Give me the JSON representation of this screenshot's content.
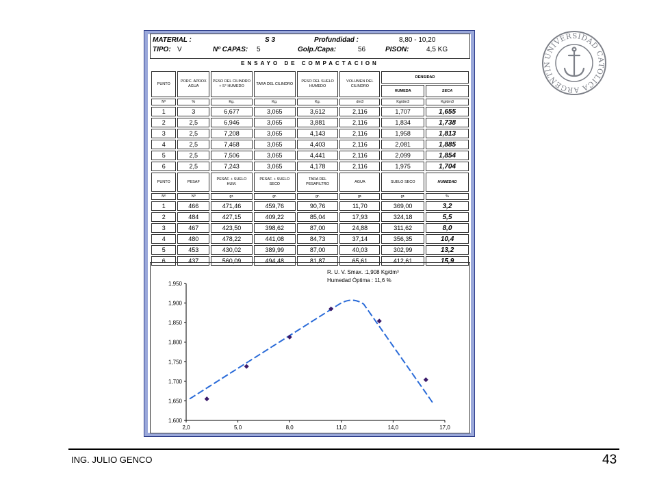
{
  "header": {
    "material_label": "MATERIAL :",
    "material_value": "S 3",
    "profundidad_label": "Profundidad :",
    "profundidad_value": "8,80   -  10,20",
    "tipo_label": "TIPO:",
    "tipo_value": "V",
    "capas_label": "Nº CAPAS:",
    "capas_value": "5",
    "golp_label": "Golp./Capa:",
    "golp_value": "56",
    "pison_label": "PISON:",
    "pison_value": "4,5 KG"
  },
  "title": "ENSAYO  DE  COMPACTACION",
  "table1": {
    "headers": [
      "PUNTO",
      "PORC. APROX AGUA",
      "PESO DEL CILINDRO + S° HUMEDO",
      "TARA DEL CILINDRO",
      "PESO DEL SUELO HUMEDO",
      "VOLUMEN DEL CILINDRO"
    ],
    "densidad": "DENSIDAD",
    "humeda": "HUMEDA",
    "seca": "SECA",
    "units": [
      "Nº",
      "%",
      "Kg.",
      "Kg.",
      "Kg.",
      "dm3",
      "Kg/dm3",
      "Kg/dm3"
    ],
    "rows": [
      [
        "1",
        "3",
        "6,677",
        "3,065",
        "3,612",
        "2,116",
        "1,707",
        "1,655"
      ],
      [
        "2",
        "2,5",
        "6,946",
        "3,065",
        "3,881",
        "2,116",
        "1,834",
        "1,738"
      ],
      [
        "3",
        "2,5",
        "7,208",
        "3,065",
        "4,143",
        "2,116",
        "1,958",
        "1,813"
      ],
      [
        "4",
        "2,5",
        "7,468",
        "3,065",
        "4,403",
        "2,116",
        "2,081",
        "1,885"
      ],
      [
        "5",
        "2,5",
        "7,506",
        "3,065",
        "4,441",
        "2,116",
        "2,099",
        "1,854"
      ],
      [
        "6",
        "2,5",
        "7,243",
        "3,065",
        "4,178",
        "2,116",
        "1,975",
        "1,704"
      ]
    ]
  },
  "table2": {
    "headers": [
      "PUNTO",
      "PESAF",
      "PESAF. + SUELO HUM.",
      "PESAF. + SUELO SECO",
      "TARA DEL PESAFILTRO",
      "AGUA",
      "SUELO SECO",
      "HUMEDAD"
    ],
    "units": [
      "Nº",
      "Nº",
      "gr.",
      "gr.",
      "gr.",
      "gr.",
      "gr.",
      "%"
    ],
    "rows": [
      [
        "1",
        "466",
        "471,46",
        "459,76",
        "90,76",
        "11,70",
        "369,00",
        "3,2"
      ],
      [
        "2",
        "484",
        "427,15",
        "409,22",
        "85,04",
        "17,93",
        "324,18",
        "5,5"
      ],
      [
        "3",
        "467",
        "423,50",
        "398,62",
        "87,00",
        "24,88",
        "311,62",
        "8,0"
      ],
      [
        "4",
        "480",
        "478,22",
        "441,08",
        "84,73",
        "37,14",
        "356,35",
        "10,4"
      ],
      [
        "5",
        "453",
        "430,02",
        "389,99",
        "87,00",
        "40,03",
        "302,99",
        "13,2"
      ],
      [
        "6",
        "437",
        "560,09",
        "494,48",
        "81,87",
        "65,61",
        "412,61",
        "15,9"
      ]
    ]
  },
  "chart_data": {
    "type": "scatter",
    "x": [
      3.2,
      5.5,
      8.0,
      10.4,
      13.2,
      15.9
    ],
    "y": [
      1.655,
      1.738,
      1.813,
      1.885,
      1.854,
      1.704
    ],
    "curve": [
      [
        2.2,
        1.655
      ],
      [
        10.8,
        1.895
      ],
      [
        11.6,
        1.908
      ],
      [
        12.3,
        1.897
      ],
      [
        16.3,
        1.645
      ]
    ],
    "xlim": [
      2.0,
      17.0
    ],
    "ylim": [
      1.6,
      1.95
    ],
    "xticks": [
      "2,0",
      "5,0",
      "8,0",
      "11,0",
      "14,0",
      "17,0"
    ],
    "yticks": [
      "1,950",
      "1,900",
      "1,850",
      "1,800",
      "1,750",
      "1,700",
      "1,650",
      "1,600"
    ],
    "annotation_1": "R. U. V. Smax. :1,908 Kg/dm³",
    "annotation_2": "Humedad Óptima : 11,6 %",
    "marker_color": "#3a1a6a",
    "curve_color": "#2a6bd8",
    "title": "",
    "xlabel": "",
    "ylabel": ""
  },
  "seal": {
    "text": "UNIVERSIDAD CATOLICA ARGENTINA",
    "color": "#7d8088"
  },
  "footer": {
    "author": "ING. JULIO GENCO",
    "page": "43"
  }
}
